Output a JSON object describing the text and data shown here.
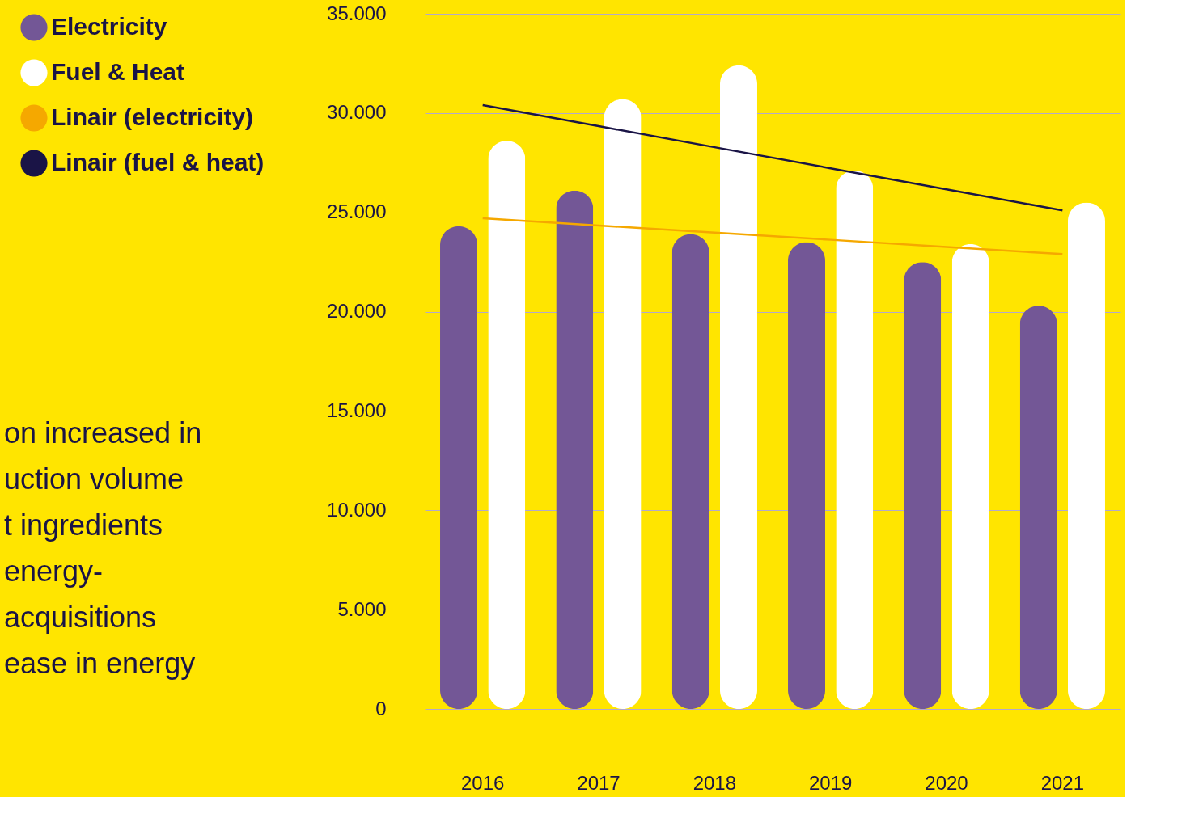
{
  "chart_data": {
    "type": "bar",
    "categories": [
      "2016",
      "2017",
      "2018",
      "2019",
      "2020",
      "2021"
    ],
    "series": [
      {
        "name": "Electricity",
        "color": "#735796",
        "values": [
          24300,
          26100,
          23900,
          23500,
          22500,
          20300
        ]
      },
      {
        "name": "Fuel & Heat",
        "color": "#ffffff",
        "values": [
          28600,
          30700,
          32400,
          27100,
          23400,
          25500
        ]
      },
      {
        "name": "Linair (electricity)",
        "type": "line",
        "color": "#f5a800",
        "values": [
          24700,
          24340,
          23980,
          23620,
          23260,
          22900
        ]
      },
      {
        "name": "Linair (fuel & heat)",
        "type": "line",
        "color": "#1a1446",
        "values": [
          30400,
          29340,
          28280,
          27220,
          26160,
          25100
        ]
      }
    ],
    "ylim": [
      0,
      35000
    ],
    "yticks": [
      {
        "value": 0,
        "label": "0"
      },
      {
        "value": 5000,
        "label": "5.000"
      },
      {
        "value": 10000,
        "label": "10.000"
      },
      {
        "value": 15000,
        "label": "15.000"
      },
      {
        "value": 20000,
        "label": "20.000"
      },
      {
        "value": 25000,
        "label": "25.000"
      },
      {
        "value": 30000,
        "label": "30.000"
      },
      {
        "value": 35000,
        "label": "35.000"
      }
    ],
    "grid": "y",
    "legend": "top left",
    "annotations": [
      "on increased in",
      "uction volume",
      "t ingredients",
      "energy-",
      "acquisitions",
      "ease in energy"
    ]
  }
}
